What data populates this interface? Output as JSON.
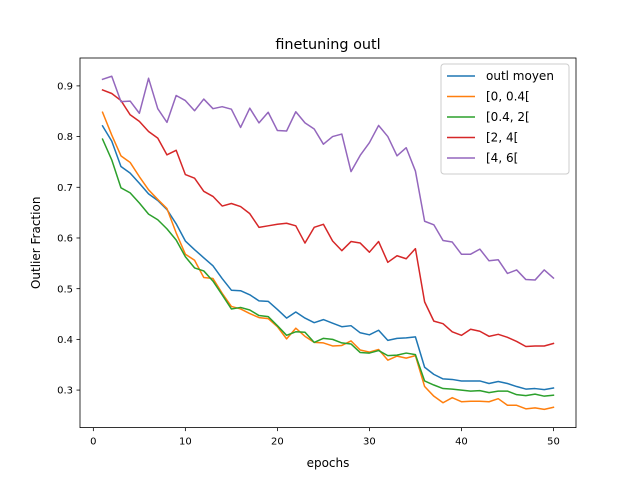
{
  "chart_data": {
    "type": "line",
    "title": "finetuning outl",
    "xlabel": "epochs",
    "ylabel": "Outlier Fraction",
    "xlim": [
      -1.45,
      52.45
    ],
    "ylim": [
      0.226,
      0.955
    ],
    "xticks": [
      0,
      10,
      20,
      30,
      40,
      50
    ],
    "yticks": [
      0.3,
      0.4,
      0.5,
      0.6,
      0.7,
      0.8,
      0.9
    ],
    "grid": false,
    "legend_position": "top-right",
    "x": [
      1,
      2,
      3,
      4,
      5,
      6,
      7,
      8,
      9,
      10,
      11,
      12,
      13,
      14,
      15,
      16,
      17,
      18,
      19,
      20,
      21,
      22,
      23,
      24,
      25,
      26,
      27,
      28,
      29,
      30,
      31,
      32,
      33,
      34,
      35,
      36,
      37,
      38,
      39,
      40,
      41,
      42,
      43,
      44,
      45,
      46,
      47,
      48,
      49,
      50
    ],
    "series": [
      {
        "name": "outl moyen",
        "color": "#1f77b4",
        "values": [
          0.821,
          0.791,
          0.741,
          0.728,
          0.708,
          0.687,
          0.674,
          0.656,
          0.628,
          0.594,
          0.577,
          0.561,
          0.545,
          0.52,
          0.497,
          0.496,
          0.488,
          0.476,
          0.475,
          0.459,
          0.442,
          0.454,
          0.442,
          0.433,
          0.439,
          0.432,
          0.425,
          0.427,
          0.413,
          0.409,
          0.418,
          0.398,
          0.402,
          0.403,
          0.405,
          0.345,
          0.331,
          0.322,
          0.321,
          0.318,
          0.318,
          0.318,
          0.313,
          0.317,
          0.313,
          0.307,
          0.302,
          0.303,
          0.301,
          0.304
        ]
      },
      {
        "name": "[0, 0.4[",
        "color": "#ff7f0e",
        "values": [
          0.848,
          0.803,
          0.762,
          0.749,
          0.721,
          0.695,
          0.676,
          0.658,
          0.61,
          0.568,
          0.556,
          0.522,
          0.52,
          0.491,
          0.465,
          0.46,
          0.451,
          0.443,
          0.441,
          0.425,
          0.401,
          0.422,
          0.406,
          0.394,
          0.393,
          0.387,
          0.388,
          0.397,
          0.379,
          0.375,
          0.38,
          0.359,
          0.367,
          0.363,
          0.368,
          0.307,
          0.288,
          0.275,
          0.285,
          0.277,
          0.278,
          0.278,
          0.277,
          0.283,
          0.27,
          0.27,
          0.263,
          0.265,
          0.262,
          0.266
        ]
      },
      {
        "name": "[0.4, 2[",
        "color": "#2ca02c",
        "values": [
          0.795,
          0.754,
          0.699,
          0.689,
          0.669,
          0.647,
          0.636,
          0.618,
          0.596,
          0.563,
          0.541,
          0.535,
          0.515,
          0.488,
          0.46,
          0.463,
          0.458,
          0.447,
          0.445,
          0.427,
          0.408,
          0.415,
          0.414,
          0.394,
          0.402,
          0.4,
          0.393,
          0.391,
          0.374,
          0.373,
          0.378,
          0.368,
          0.369,
          0.373,
          0.37,
          0.318,
          0.31,
          0.303,
          0.302,
          0.3,
          0.298,
          0.299,
          0.295,
          0.298,
          0.298,
          0.291,
          0.289,
          0.292,
          0.288,
          0.29
        ]
      },
      {
        "name": "[2, 4[",
        "color": "#d62728",
        "values": [
          0.892,
          0.885,
          0.871,
          0.843,
          0.83,
          0.81,
          0.797,
          0.764,
          0.773,
          0.725,
          0.718,
          0.692,
          0.682,
          0.663,
          0.668,
          0.662,
          0.648,
          0.621,
          0.624,
          0.627,
          0.629,
          0.624,
          0.59,
          0.621,
          0.627,
          0.594,
          0.575,
          0.593,
          0.59,
          0.572,
          0.593,
          0.552,
          0.565,
          0.559,
          0.579,
          0.474,
          0.436,
          0.431,
          0.415,
          0.408,
          0.42,
          0.416,
          0.406,
          0.41,
          0.404,
          0.396,
          0.386,
          0.387,
          0.387,
          0.392
        ]
      },
      {
        "name": "[4, 6[",
        "color": "#9467bd",
        "values": [
          0.913,
          0.919,
          0.869,
          0.87,
          0.846,
          0.915,
          0.855,
          0.828,
          0.881,
          0.871,
          0.851,
          0.874,
          0.855,
          0.859,
          0.854,
          0.818,
          0.856,
          0.827,
          0.848,
          0.812,
          0.811,
          0.849,
          0.827,
          0.815,
          0.785,
          0.8,
          0.805,
          0.731,
          0.763,
          0.788,
          0.822,
          0.8,
          0.762,
          0.778,
          0.732,
          0.633,
          0.626,
          0.595,
          0.592,
          0.568,
          0.568,
          0.578,
          0.555,
          0.557,
          0.53,
          0.537,
          0.518,
          0.517,
          0.537,
          0.521
        ]
      }
    ]
  }
}
